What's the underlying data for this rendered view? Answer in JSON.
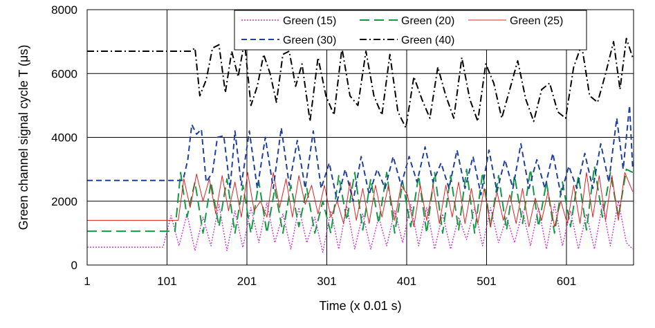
{
  "chart_data": {
    "type": "line",
    "xlabel": "Time (x 0.01 s)",
    "ylabel": "Green channel signal cycle T (μs)",
    "xlim": [
      1,
      685
    ],
    "ylim": [
      0,
      8000
    ],
    "x_ticks": [
      1,
      101,
      201,
      301,
      401,
      501,
      601
    ],
    "y_ticks": [
      0,
      2000,
      4000,
      6000,
      8000
    ],
    "grid": true,
    "legend_position": "top-right",
    "series": [
      {
        "name": "Green (15)",
        "color": "#cc33cc",
        "dash": "dotted",
        "points": [
          [
            1,
            560
          ],
          [
            96,
            560
          ],
          [
            106,
            1550
          ],
          [
            116,
            600
          ],
          [
            126,
            1600
          ],
          [
            136,
            450
          ],
          [
            146,
            1500
          ],
          [
            156,
            600
          ],
          [
            166,
            1900
          ],
          [
            176,
            450
          ],
          [
            186,
            1700
          ],
          [
            196,
            550
          ],
          [
            206,
            1800
          ],
          [
            216,
            700
          ],
          [
            226,
            1950
          ],
          [
            236,
            700
          ],
          [
            246,
            1600
          ],
          [
            256,
            500
          ],
          [
            266,
            1800
          ],
          [
            276,
            700
          ],
          [
            286,
            1500
          ],
          [
            296,
            400
          ],
          [
            306,
            1700
          ],
          [
            316,
            500
          ],
          [
            326,
            1850
          ],
          [
            336,
            500
          ],
          [
            346,
            1600
          ],
          [
            356,
            500
          ],
          [
            366,
            1500
          ],
          [
            376,
            600
          ],
          [
            386,
            1700
          ],
          [
            396,
            700
          ],
          [
            406,
            1900
          ],
          [
            416,
            600
          ],
          [
            426,
            1800
          ],
          [
            436,
            500
          ],
          [
            446,
            1600
          ],
          [
            456,
            500
          ],
          [
            466,
            1500
          ],
          [
            476,
            800
          ],
          [
            486,
            1800
          ],
          [
            496,
            600
          ],
          [
            506,
            1800
          ],
          [
            516,
            700
          ],
          [
            526,
            1500
          ],
          [
            536,
            700
          ],
          [
            546,
            1700
          ],
          [
            556,
            600
          ],
          [
            566,
            1800
          ],
          [
            576,
            500
          ],
          [
            586,
            1900
          ],
          [
            596,
            600
          ],
          [
            606,
            1700
          ],
          [
            616,
            500
          ],
          [
            626,
            1600
          ],
          [
            636,
            500
          ],
          [
            646,
            1900
          ],
          [
            656,
            600
          ],
          [
            666,
            2000
          ],
          [
            676,
            700
          ],
          [
            684,
            500
          ]
        ]
      },
      {
        "name": "Green (20)",
        "color": "#119944",
        "dash": "long-dash",
        "points": [
          [
            1,
            1060
          ],
          [
            111,
            1060
          ],
          [
            118,
            2900
          ],
          [
            126,
            1500
          ],
          [
            136,
            2600
          ],
          [
            146,
            1000
          ],
          [
            156,
            2600
          ],
          [
            166,
            1200
          ],
          [
            176,
            2700
          ],
          [
            186,
            1000
          ],
          [
            196,
            2500
          ],
          [
            206,
            1000
          ],
          [
            216,
            2600
          ],
          [
            226,
            1000
          ],
          [
            236,
            2400
          ],
          [
            246,
            1000
          ],
          [
            256,
            2500
          ],
          [
            266,
            1200
          ],
          [
            276,
            2400
          ],
          [
            286,
            1000
          ],
          [
            296,
            2000
          ],
          [
            306,
            1000
          ],
          [
            316,
            2800
          ],
          [
            326,
            1400
          ],
          [
            336,
            2900
          ],
          [
            346,
            1100
          ],
          [
            356,
            2700
          ],
          [
            366,
            1300
          ],
          [
            376,
            2900
          ],
          [
            386,
            1000
          ],
          [
            396,
            2600
          ],
          [
            406,
            1200
          ],
          [
            416,
            2800
          ],
          [
            426,
            1000
          ],
          [
            436,
            2900
          ],
          [
            446,
            1000
          ],
          [
            456,
            2800
          ],
          [
            466,
            1100
          ],
          [
            476,
            3000
          ],
          [
            486,
            1000
          ],
          [
            496,
            2900
          ],
          [
            506,
            1200
          ],
          [
            516,
            2800
          ],
          [
            526,
            1100
          ],
          [
            536,
            2800
          ],
          [
            546,
            1300
          ],
          [
            556,
            3000
          ],
          [
            566,
            1200
          ],
          [
            576,
            2600
          ],
          [
            586,
            1000
          ],
          [
            596,
            2600
          ],
          [
            606,
            1200
          ],
          [
            616,
            2800
          ],
          [
            626,
            1100
          ],
          [
            636,
            3100
          ],
          [
            646,
            1500
          ],
          [
            656,
            2900
          ],
          [
            666,
            1500
          ],
          [
            676,
            3000
          ],
          [
            684,
            2900
          ]
        ]
      },
      {
        "name": "Green (25)",
        "color": "#e02020",
        "dash": "solid",
        "points": [
          [
            1,
            1400
          ],
          [
            115,
            1400
          ],
          [
            122,
            2700
          ],
          [
            130,
            1800
          ],
          [
            138,
            2850
          ],
          [
            146,
            2000
          ],
          [
            154,
            2700
          ],
          [
            162,
            1600
          ],
          [
            170,
            2800
          ],
          [
            178,
            1700
          ],
          [
            186,
            2600
          ],
          [
            194,
            1500
          ],
          [
            202,
            2900
          ],
          [
            210,
            1700
          ],
          [
            218,
            2000
          ],
          [
            226,
            1500
          ],
          [
            234,
            2900
          ],
          [
            242,
            1800
          ],
          [
            250,
            2700
          ],
          [
            258,
            1500
          ],
          [
            266,
            2800
          ],
          [
            274,
            1900
          ],
          [
            282,
            2500
          ],
          [
            290,
            1600
          ],
          [
            298,
            2500
          ],
          [
            306,
            1500
          ],
          [
            314,
            2000
          ],
          [
            322,
            1300
          ],
          [
            330,
            2600
          ],
          [
            338,
            1400
          ],
          [
            346,
            2400
          ],
          [
            354,
            1300
          ],
          [
            362,
            2500
          ],
          [
            370,
            1500
          ],
          [
            378,
            2500
          ],
          [
            386,
            1400
          ],
          [
            394,
            2500
          ],
          [
            402,
            2200
          ],
          [
            410,
            1200
          ],
          [
            418,
            2500
          ],
          [
            426,
            1400
          ],
          [
            434,
            2500
          ],
          [
            442,
            1300
          ],
          [
            450,
            2500
          ],
          [
            458,
            1500
          ],
          [
            466,
            2600
          ],
          [
            474,
            1300
          ],
          [
            482,
            2400
          ],
          [
            490,
            1300
          ],
          [
            498,
            2400
          ],
          [
            506,
            1200
          ],
          [
            514,
            2300
          ],
          [
            522,
            1400
          ],
          [
            530,
            2200
          ],
          [
            538,
            1300
          ],
          [
            546,
            2400
          ],
          [
            554,
            1200
          ],
          [
            562,
            2100
          ],
          [
            570,
            1400
          ],
          [
            578,
            2300
          ],
          [
            586,
            1200
          ],
          [
            594,
            2000
          ],
          [
            602,
            1300
          ],
          [
            610,
            2500
          ],
          [
            618,
            1300
          ],
          [
            626,
            2900
          ],
          [
            634,
            1500
          ],
          [
            642,
            2800
          ],
          [
            650,
            1400
          ],
          [
            658,
            2800
          ],
          [
            666,
            1400
          ],
          [
            674,
            2900
          ],
          [
            684,
            2300
          ]
        ]
      },
      {
        "name": "Green (30)",
        "color": "#1f3f99",
        "dash": "dash",
        "points": [
          [
            1,
            2650
          ],
          [
            121,
            2650
          ],
          [
            127,
            3300
          ],
          [
            132,
            4400
          ],
          [
            138,
            4100
          ],
          [
            144,
            4250
          ],
          [
            150,
            2600
          ],
          [
            158,
            2900
          ],
          [
            164,
            4000
          ],
          [
            172,
            4050
          ],
          [
            180,
            2400
          ],
          [
            186,
            4200
          ],
          [
            194,
            2500
          ],
          [
            204,
            4200
          ],
          [
            214,
            2400
          ],
          [
            224,
            4000
          ],
          [
            234,
            2400
          ],
          [
            244,
            4300
          ],
          [
            254,
            2500
          ],
          [
            264,
            3900
          ],
          [
            274,
            2400
          ],
          [
            284,
            4200
          ],
          [
            294,
            2400
          ],
          [
            304,
            3200
          ],
          [
            314,
            2000
          ],
          [
            324,
            3000
          ],
          [
            334,
            2000
          ],
          [
            344,
            3400
          ],
          [
            354,
            2200
          ],
          [
            364,
            3000
          ],
          [
            374,
            2400
          ],
          [
            384,
            3400
          ],
          [
            394,
            2500
          ],
          [
            404,
            3400
          ],
          [
            414,
            2600
          ],
          [
            424,
            3700
          ],
          [
            434,
            2600
          ],
          [
            444,
            3200
          ],
          [
            454,
            2400
          ],
          [
            464,
            3600
          ],
          [
            474,
            2400
          ],
          [
            484,
            3400
          ],
          [
            494,
            2200
          ],
          [
            504,
            3600
          ],
          [
            514,
            2300
          ],
          [
            524,
            3300
          ],
          [
            534,
            2400
          ],
          [
            544,
            3800
          ],
          [
            554,
            2400
          ],
          [
            564,
            3300
          ],
          [
            574,
            2400
          ],
          [
            584,
            3500
          ],
          [
            594,
            2200
          ],
          [
            604,
            3100
          ],
          [
            614,
            2400
          ],
          [
            624,
            3500
          ],
          [
            634,
            2400
          ],
          [
            644,
            3800
          ],
          [
            654,
            2600
          ],
          [
            664,
            4600
          ],
          [
            672,
            3000
          ],
          [
            680,
            5000
          ],
          [
            684,
            3000
          ]
        ]
      },
      {
        "name": "Green (40)",
        "color": "#000000",
        "dash": "dash-dot",
        "points": [
          [
            1,
            6700
          ],
          [
            131,
            6700
          ],
          [
            136,
            6800
          ],
          [
            142,
            5300
          ],
          [
            150,
            5800
          ],
          [
            158,
            6800
          ],
          [
            166,
            6900
          ],
          [
            174,
            5400
          ],
          [
            182,
            6700
          ],
          [
            190,
            5900
          ],
          [
            198,
            7000
          ],
          [
            206,
            5000
          ],
          [
            214,
            5600
          ],
          [
            222,
            6600
          ],
          [
            230,
            6000
          ],
          [
            238,
            5100
          ],
          [
            246,
            6600
          ],
          [
            254,
            6700
          ],
          [
            262,
            5600
          ],
          [
            270,
            6300
          ],
          [
            280,
            4500
          ],
          [
            290,
            6500
          ],
          [
            300,
            5300
          ],
          [
            310,
            4700
          ],
          [
            320,
            6800
          ],
          [
            330,
            5300
          ],
          [
            340,
            5000
          ],
          [
            350,
            6700
          ],
          [
            360,
            5300
          ],
          [
            370,
            4700
          ],
          [
            380,
            6600
          ],
          [
            390,
            4800
          ],
          [
            400,
            4300
          ],
          [
            410,
            5900
          ],
          [
            420,
            5200
          ],
          [
            430,
            4600
          ],
          [
            440,
            6200
          ],
          [
            450,
            5300
          ],
          [
            460,
            4600
          ],
          [
            470,
            6500
          ],
          [
            480,
            5200
          ],
          [
            490,
            4500
          ],
          [
            500,
            6300
          ],
          [
            510,
            5700
          ],
          [
            520,
            4600
          ],
          [
            530,
            5500
          ],
          [
            540,
            6400
          ],
          [
            550,
            5200
          ],
          [
            560,
            4500
          ],
          [
            570,
            5500
          ],
          [
            580,
            5700
          ],
          [
            590,
            4800
          ],
          [
            600,
            4600
          ],
          [
            610,
            6200
          ],
          [
            620,
            6900
          ],
          [
            630,
            5300
          ],
          [
            640,
            5100
          ],
          [
            650,
            6000
          ],
          [
            660,
            7000
          ],
          [
            668,
            5500
          ],
          [
            676,
            7100
          ],
          [
            684,
            6500
          ]
        ]
      }
    ]
  }
}
